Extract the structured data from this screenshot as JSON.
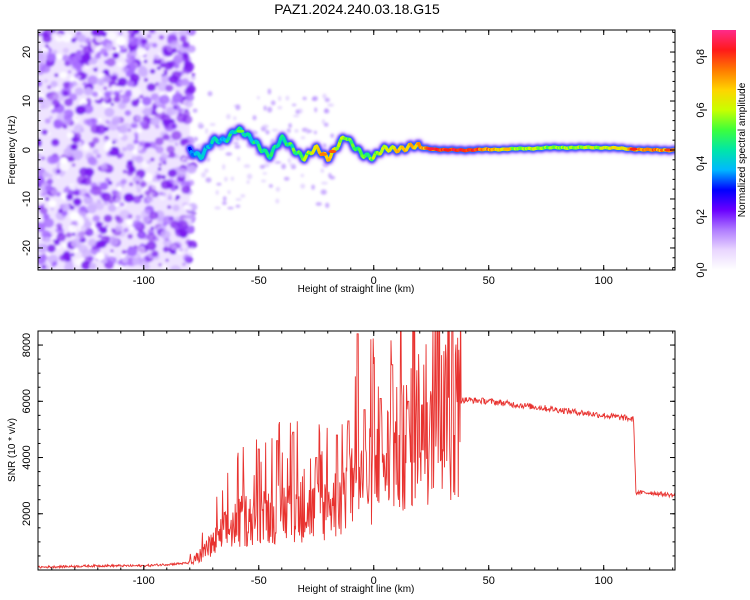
{
  "title": "PAZ1.2024.240.03.18.G15",
  "colors": {
    "snr_line": "#e8322f",
    "frame": "#000000",
    "colormap": [
      "#ffffff",
      "#e9d6ff",
      "#b07cff",
      "#6a00ff",
      "#0000ff",
      "#00b8ff",
      "#00e6a8",
      "#3cff3c",
      "#c8ff00",
      "#ffd400",
      "#ff7a00",
      "#ff1a1a",
      "#ff2a8a"
    ]
  },
  "chart_data": [
    {
      "type": "heatmap",
      "xlabel": "Height of straight line (km)",
      "ylabel": "Frequency (Hz)",
      "xlim": [
        -146,
        131
      ],
      "ylim": [
        -24.5,
        24.5
      ],
      "x_ticks": [
        -100,
        -50,
        0,
        50,
        100
      ],
      "x_tick_labels": [
        "-100",
        "-50",
        "0",
        "50",
        "100"
      ],
      "y_ticks": [
        20,
        10,
        0,
        -10,
        -20
      ],
      "y_tick_labels": [
        "20",
        "10",
        "0",
        "-10",
        "-20"
      ],
      "colorbar": {
        "label": "Normalized spectral amplitude",
        "range": [
          0,
          0.9
        ],
        "ticks": [
          0.0,
          0.2,
          0.4,
          0.6,
          0.8
        ],
        "tick_labels": [
          "0.0",
          "0.2",
          "0.4",
          "0.6",
          "0.8"
        ]
      },
      "ridge": {
        "x": [
          -80,
          -75,
          -70,
          -65,
          -60,
          -57,
          -55,
          -50,
          -45,
          -40,
          -35,
          -30,
          -25,
          -20,
          -15,
          -12,
          -10,
          -5,
          0,
          5,
          10,
          20,
          30,
          40,
          60,
          80,
          100,
          120,
          131
        ],
        "y": [
          0.0,
          -1.0,
          1.5,
          2.0,
          4.5,
          3.5,
          2.5,
          1.0,
          -1.0,
          2.0,
          0.5,
          -1.5,
          0.0,
          -1.5,
          1.5,
          2.5,
          1.0,
          -0.5,
          -1.5,
          0.0,
          0.5,
          0.5,
          0.0,
          0.0,
          0.2,
          0.5,
          0.5,
          0.0,
          0.0
        ],
        "amplitude": [
          0.35,
          0.38,
          0.4,
          0.42,
          0.45,
          0.45,
          0.42,
          0.45,
          0.45,
          0.48,
          0.5,
          0.55,
          0.65,
          0.7,
          0.6,
          0.55,
          0.55,
          0.5,
          0.55,
          0.6,
          0.65,
          0.7,
          0.8,
          0.85,
          0.6,
          0.55,
          0.6,
          0.75,
          0.7
        ]
      },
      "noise_region_x": [
        -146,
        -80
      ]
    },
    {
      "type": "line",
      "xlabel": "Height of straight line (km)",
      "ylabel": "SNR (10 * v/v)",
      "xlim": [
        -146,
        131
      ],
      "ylim": [
        0,
        8500
      ],
      "x_ticks": [
        -100,
        -50,
        0,
        50,
        100
      ],
      "x_tick_labels": [
        "-100",
        "-50",
        "0",
        "50",
        "100"
      ],
      "y_ticks": [
        2000,
        4000,
        6000,
        8000
      ],
      "y_tick_labels": [
        "2000",
        "4000",
        "6000",
        "8000"
      ],
      "series": [
        {
          "x": [
            -146,
            -120,
            -100,
            -80,
            -75,
            -70,
            -65,
            -60,
            -55,
            -50,
            -45,
            -40,
            -35,
            -30,
            -25,
            -20,
            -15,
            -10,
            -7,
            -5,
            0,
            5,
            10,
            15,
            20,
            25,
            30,
            35,
            40,
            50,
            60,
            70,
            80,
            90,
            100,
            110,
            113,
            114,
            120,
            131
          ],
          "y": [
            100,
            150,
            150,
            250,
            600,
            1000,
            1500,
            1800,
            2000,
            2100,
            2200,
            2300,
            2400,
            2300,
            2300,
            2500,
            2700,
            3100,
            3200,
            3400,
            3800,
            4300,
            4700,
            5100,
            5500,
            5800,
            5950,
            6000,
            6050,
            6000,
            5900,
            5800,
            5700,
            5600,
            5500,
            5400,
            5350,
            2750,
            2750,
            2650
          ],
          "spikes": [
            {
              "x": -50,
              "y": 4300
            },
            {
              "x": -42,
              "y": 4600
            },
            {
              "x": -35,
              "y": 4900
            },
            {
              "x": -25,
              "y": 4000
            },
            {
              "x": -16,
              "y": 4800
            },
            {
              "x": -11,
              "y": 5300
            },
            {
              "x": -7,
              "y": 8400
            },
            {
              "x": -4,
              "y": 5700
            },
            {
              "x": 3,
              "y": 6100
            },
            {
              "x": 8,
              "y": 7300
            },
            {
              "x": 15,
              "y": 6000
            }
          ]
        }
      ]
    }
  ]
}
